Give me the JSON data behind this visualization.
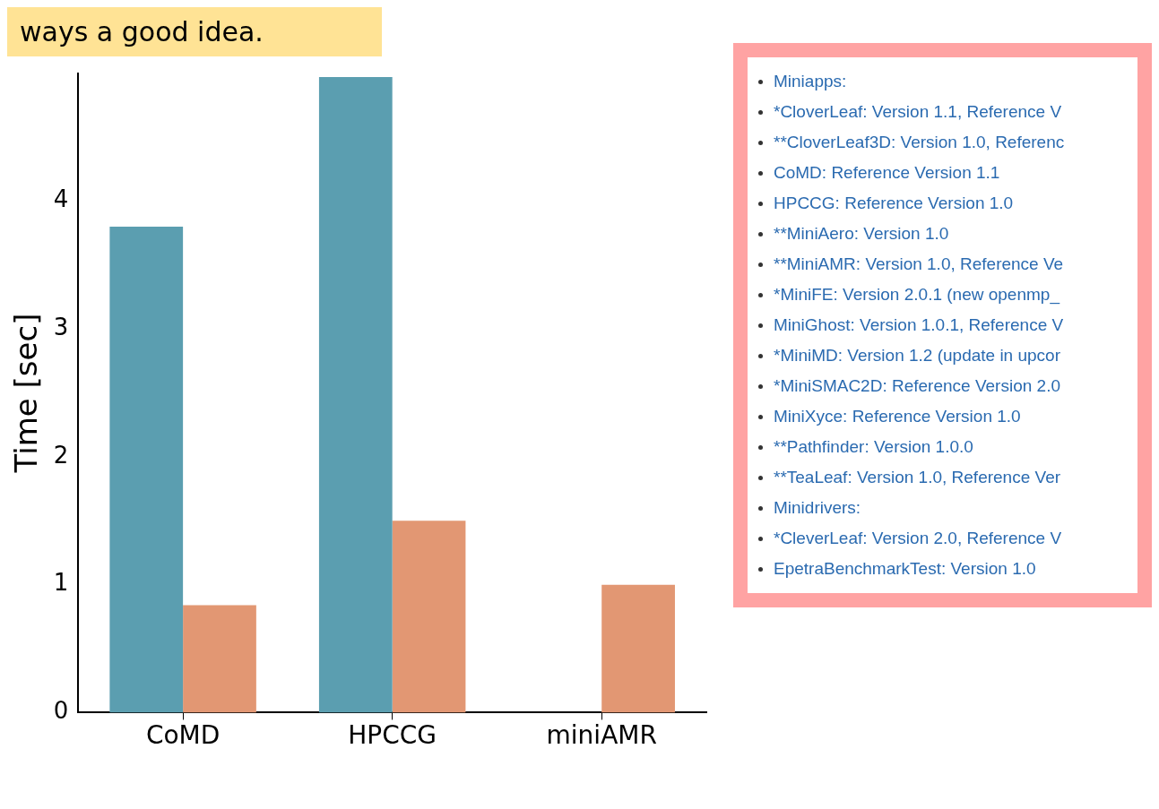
{
  "chart_data": {
    "type": "bar",
    "ylabel": "Time [sec]",
    "categories": [
      "CoMD",
      "HPCCG",
      "miniAMR"
    ],
    "series": [
      {
        "color": "#5b9eb0",
        "values": [
          3.8,
          4.97,
          null
        ]
      },
      {
        "color": "#e29773",
        "values": [
          0.84,
          1.5,
          1.0
        ]
      }
    ],
    "ylim": [
      0,
      5
    ],
    "yticks": [
      0,
      1,
      2,
      3,
      4
    ],
    "grid": false,
    "legend": false,
    "annotations": [
      "ways a good idea.",
      "Miniapps:",
      "*CloverLeaf: Version 1.1, Reference V",
      "**CloverLeaf3D: Version 1.0, Referenc",
      "CoMD: Reference Version 1.1",
      "HPCCG: Reference Version 1.0",
      "**MiniAero: Version 1.0",
      "**MiniAMR: Version 1.0, Reference Ve",
      "*MiniFE: Version 2.0.1 (new openmp_",
      "MiniGhost: Version 1.0.1, Reference V",
      "*MiniMD: Version 1.2 (update in upcor",
      "*MiniSMAC2D: Reference Version 2.0",
      "MiniXyce: Reference Version 1.0",
      "**Pathfinder: Version 1.0.0",
      "**TeaLeaf: Version 1.0, Reference Ver",
      "Minidrivers:",
      "*CleverLeaf: Version 2.0, Reference V",
      "EpetraBenchmarkTest: Version 1.0"
    ]
  }
}
